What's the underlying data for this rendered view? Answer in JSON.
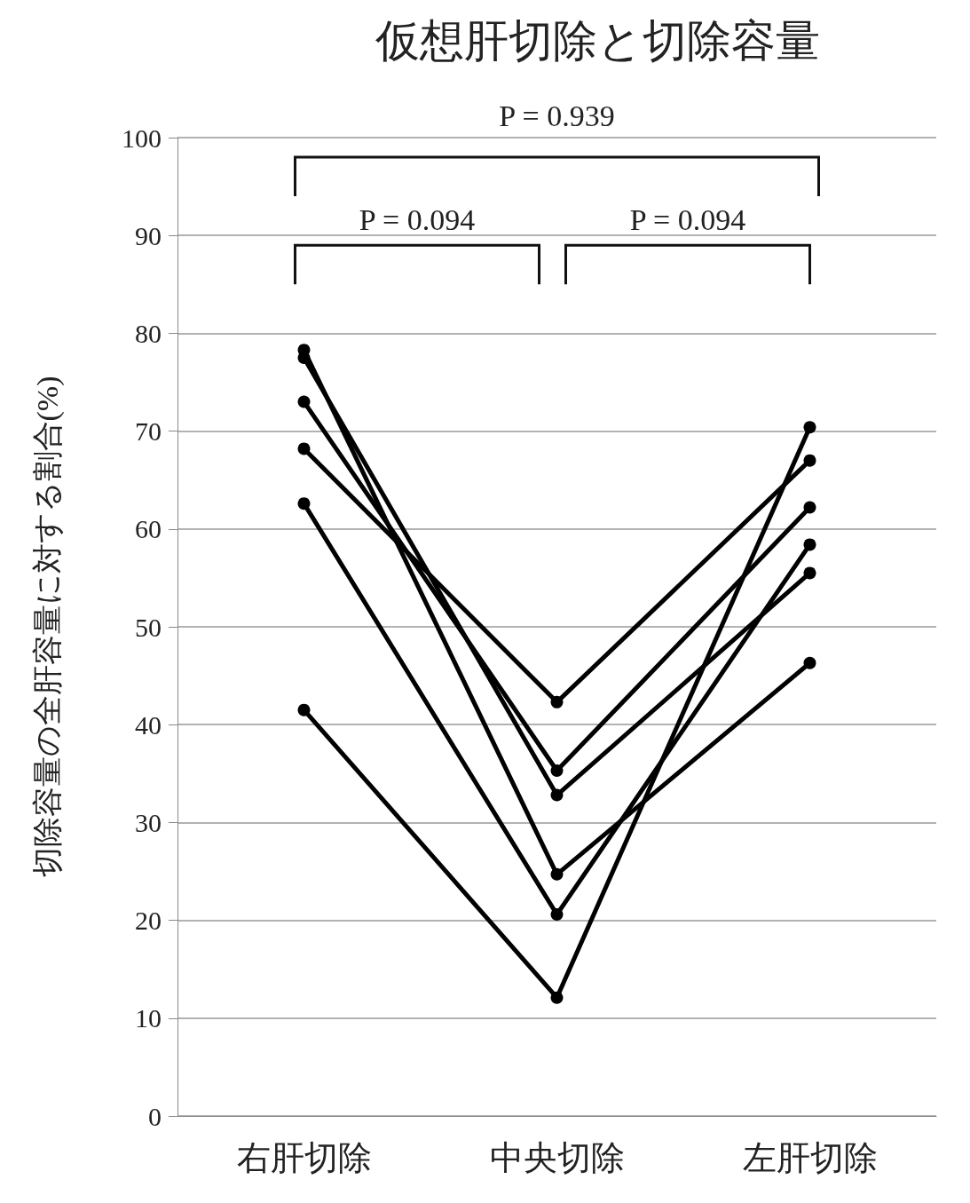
{
  "chart_data": {
    "type": "line",
    "title": "仮想肝切除と切除容量",
    "ylabel": "切除容量の全肝容量に対する割合(%)",
    "categories": [
      "右肝切除",
      "中央切除",
      "左肝切除"
    ],
    "series": [
      {
        "color": "#000000",
        "values": [
          78.3,
          24.7,
          46.3
        ]
      },
      {
        "color": "#000000",
        "values": [
          77.5,
          32.8,
          55.5
        ]
      },
      {
        "color": "#000000",
        "values": [
          73,
          35.3,
          62.2
        ]
      },
      {
        "color": "#000000",
        "values": [
          68.2,
          42.3,
          67
        ]
      },
      {
        "color": "#000000",
        "values": [
          62.6,
          20.6,
          58.4
        ]
      },
      {
        "color": "#000000",
        "values": [
          41.5,
          12.1,
          70.4
        ]
      }
    ],
    "ylim": [
      0,
      100
    ],
    "yticks": [
      0,
      10,
      20,
      30,
      40,
      50,
      60,
      70,
      80,
      90,
      100
    ],
    "grid": "y",
    "marker": "circle",
    "line_style": "solid",
    "annotations": [
      "P = 0.939",
      "P = 0.094",
      "P = 0.094"
    ]
  }
}
